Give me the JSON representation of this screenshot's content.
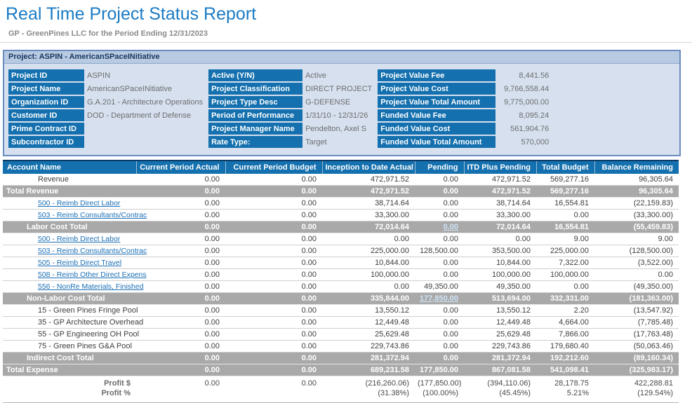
{
  "header": {
    "title": "Real Time Project Status Report",
    "subtitle": "GP - GreenPines LLC for the Period Ending 12/31/2023"
  },
  "project_bar": {
    "text": "Project: ASPIN - AmericanSPaceINitiative"
  },
  "info_panel": {
    "groups": [
      {
        "rows": [
          {
            "label": "Project ID",
            "value": "ASPIN"
          },
          {
            "label": "Project Name",
            "value": "AmericanSPaceINitiative"
          },
          {
            "label": "Organization ID",
            "value": "G.A.201 - Architecture Operations"
          },
          {
            "label": "Customer ID",
            "value": "DOD - Department of Defense"
          },
          {
            "label": "Prime Contract ID",
            "value": ""
          },
          {
            "label": "Subcontractor ID",
            "value": ""
          }
        ]
      },
      {
        "rows": [
          {
            "label": "Active (Y/N)",
            "value": "Active"
          },
          {
            "label": "Project Classification",
            "value": "DIRECT PROJECT"
          },
          {
            "label": "Project Type Desc",
            "value": "G-DEFENSE"
          },
          {
            "label": "Period of Performance",
            "value": "1/31/10 - 12/31/26"
          },
          {
            "label": "Project Manager Name",
            "value": "Pendelton, Axel S"
          },
          {
            "label": "Rate Type:",
            "value": "Target"
          }
        ]
      },
      {
        "rows": [
          {
            "label": "Project Value Fee",
            "value": "8,441.56"
          },
          {
            "label": "Project Value Cost",
            "value": "9,766,558.44"
          },
          {
            "label": "Project Value Total Amount",
            "value": "9,775,000.00"
          },
          {
            "label": "Funded Value Fee",
            "value": "8,095.24"
          },
          {
            "label": "Funded Value Cost",
            "value": "561,904.76"
          },
          {
            "label": "Funded Value Total Amount",
            "value": "570,000"
          }
        ]
      }
    ]
  },
  "table": {
    "columns": [
      "Account Name",
      "Current Period Actual",
      "Current Period Budget",
      "Inception to Date Actual",
      "Pending",
      "ITD Plus Pending",
      "Total Budget",
      "Balance Remaining"
    ],
    "rows": [
      {
        "label": "Revenue",
        "type": "plain",
        "indent": 2,
        "values": [
          "0.00",
          "0.00",
          "472,971.52",
          "0.00",
          "472,971.52",
          "569,277.16",
          "96,305.64"
        ]
      },
      {
        "label": "Total Revenue",
        "type": "total",
        "indent": 0,
        "values": [
          "0.00",
          "0.00",
          "472,971.52",
          "0.00",
          "472,971.52",
          "569,277.16",
          "96,305.64"
        ]
      },
      {
        "label": "500 - Reimb Direct Labor",
        "type": "link",
        "indent": 2,
        "values": [
          "0.00",
          "0.00",
          "38,714.64",
          "0.00",
          "38,714.64",
          "16,554.81",
          "(22,159.83)"
        ]
      },
      {
        "label": "503 - Reimb Consultants/Contrac",
        "type": "link",
        "indent": 2,
        "values": [
          "0.00",
          "0.00",
          "33,300.00",
          "0.00",
          "33,300.00",
          "0.00",
          "(33,300.00)"
        ]
      },
      {
        "label": "Labor Cost Total",
        "type": "total",
        "indent": 1,
        "pending_link": true,
        "values": [
          "0.00",
          "0.00",
          "72,014.64",
          "0.00",
          "72,014.64",
          "16,554.81",
          "(55,459.83)"
        ]
      },
      {
        "label": "500 - Reimb Direct Labor",
        "type": "link",
        "indent": 2,
        "values": [
          "0.00",
          "0.00",
          "0.00",
          "0.00",
          "0.00",
          "9.00",
          "9.00"
        ]
      },
      {
        "label": "503 - Reimb Consultants/Contrac",
        "type": "link",
        "indent": 2,
        "values": [
          "0.00",
          "0.00",
          "225,000.00",
          "128,500.00",
          "353,500.00",
          "225,000.00",
          "(128,500.00)"
        ]
      },
      {
        "label": "505 - Reimb Direct Travel",
        "type": "link",
        "indent": 2,
        "values": [
          "0.00",
          "0.00",
          "10,844.00",
          "0.00",
          "10,844.00",
          "7,322.00",
          "(3,522.00)"
        ]
      },
      {
        "label": "508 - Reimb Other Direct Expens",
        "type": "link",
        "indent": 2,
        "values": [
          "0.00",
          "0.00",
          "100,000.00",
          "0.00",
          "100,000.00",
          "100,000.00",
          "0.00"
        ]
      },
      {
        "label": "556 - NonRe Materials, Finished",
        "type": "link",
        "indent": 2,
        "values": [
          "0.00",
          "0.00",
          "0.00",
          "49,350.00",
          "49,350.00",
          "0.00",
          "(49,350.00)"
        ]
      },
      {
        "label": "Non-Labor Cost Total",
        "type": "total",
        "indent": 1,
        "pending_link": true,
        "values": [
          "0.00",
          "0.00",
          "335,844.00",
          "177,850.00",
          "513,694.00",
          "332,331.00",
          "(181,363.00)"
        ]
      },
      {
        "label": "15 - Green Pines Fringe Pool",
        "type": "plain",
        "indent": 2,
        "values": [
          "0.00",
          "0.00",
          "13,550.12",
          "0.00",
          "13,550.12",
          "2.20",
          "(13,547.92)"
        ]
      },
      {
        "label": "35 - GP Architecture Overhead",
        "type": "plain",
        "indent": 2,
        "values": [
          "0.00",
          "0.00",
          "12,449.48",
          "0.00",
          "12,449.48",
          "4,664.00",
          "(7,785.48)"
        ]
      },
      {
        "label": "55 - GP Engineering OH Pool",
        "type": "plain",
        "indent": 2,
        "values": [
          "0.00",
          "0.00",
          "25,629.48",
          "0.00",
          "25,629.48",
          "7,866.00",
          "(17,763.48)"
        ]
      },
      {
        "label": "75 - Green Pines G&A Pool",
        "type": "plain",
        "indent": 2,
        "values": [
          "0.00",
          "0.00",
          "229,743.86",
          "0.00",
          "229,743.86",
          "179,680.40",
          "(50,063.46)"
        ]
      },
      {
        "label": "Indirect Cost Total",
        "type": "total",
        "indent": 1,
        "values": [
          "0.00",
          "0.00",
          "281,372.94",
          "0.00",
          "281,372.94",
          "192,212.60",
          "(89,160.34)"
        ]
      },
      {
        "label": "Total Expense",
        "type": "total",
        "indent": 0,
        "values": [
          "0.00",
          "0.00",
          "689,231.58",
          "177,850.00",
          "867,081.58",
          "541,098.41",
          "(325,983.17)"
        ]
      }
    ],
    "profit": {
      "label_dollar": "Profit $",
      "label_percent": "Profit %",
      "dollar": [
        "0.00",
        "0.00",
        "(216,260.06)",
        "(177,850.00)",
        "(394,110.06)",
        "28,178.75",
        "422,288.81"
      ],
      "percent": [
        "",
        "",
        "(31.38%)",
        "(100.00%)",
        "(45.45%)",
        "5.21%",
        "(129.54%)"
      ]
    }
  },
  "colors": {
    "title_blue": "#1b7bc4",
    "header_blue": "#1470ae",
    "panel_fill": "#d6e0ef",
    "panel_border": "#6b8cbe",
    "project_bar": "#b7cae2",
    "total_gray": "#a9a9a9",
    "link_blue": "#1b6fb5",
    "pending_link": "#cfe3f6"
  }
}
